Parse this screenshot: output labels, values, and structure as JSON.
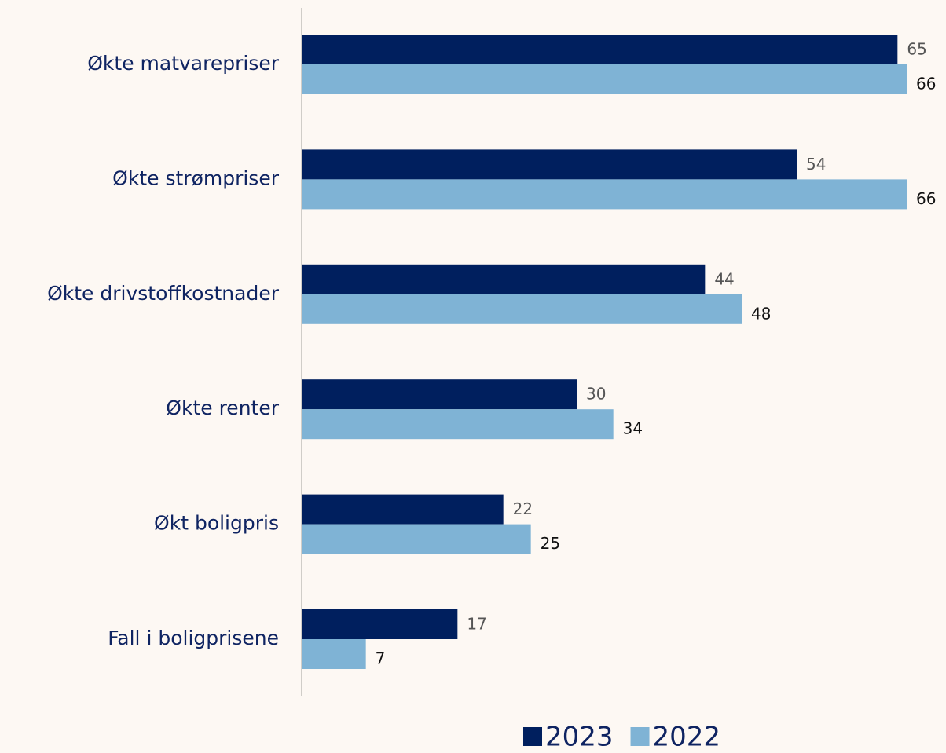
{
  "chart_data": {
    "type": "bar",
    "orientation": "horizontal",
    "categories": [
      "Økte matvarepriser",
      "Økte strømpriser",
      "Økte drivstoffkostnader",
      "Økte renter",
      "Økt boligpris",
      "Fall i boligprisene"
    ],
    "series": [
      {
        "name": "2023",
        "color": "#001f5e",
        "values": [
          65,
          54,
          44,
          30,
          22,
          17
        ]
      },
      {
        "name": "2022",
        "color": "#7fb3d5",
        "values": [
          66,
          66,
          48,
          34,
          25,
          7
        ]
      }
    ]
  }
}
